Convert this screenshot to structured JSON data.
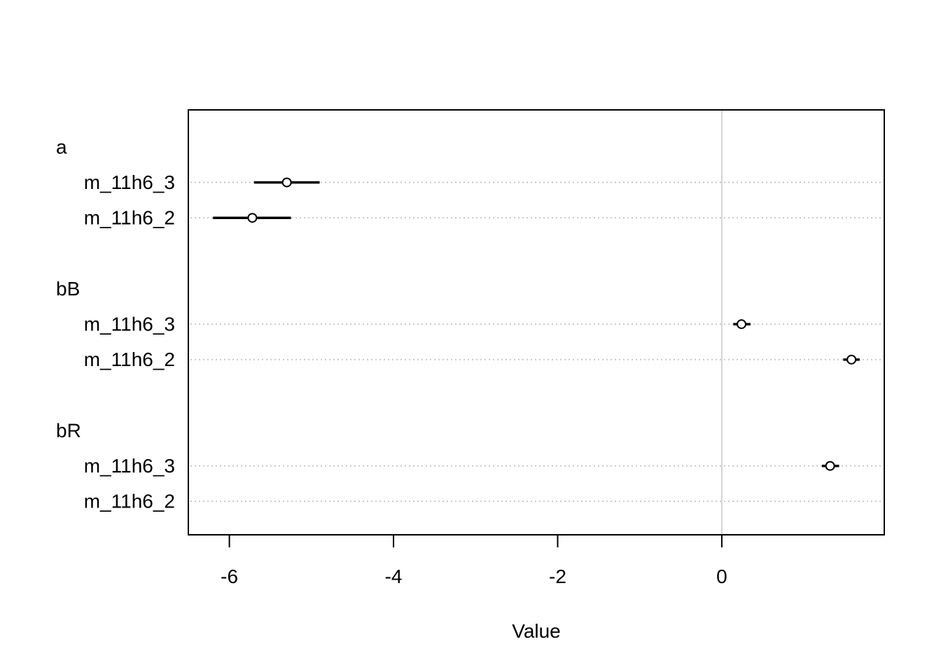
{
  "chart_data": {
    "type": "scatter",
    "subtype": "coefficient-dot-plot",
    "xlabel": "Value",
    "ylabel": "",
    "title": "",
    "xlim": [
      -6.5,
      1.98
    ],
    "xticks": [
      -6,
      -4,
      -2,
      0
    ],
    "xtick_labels": [
      "-6",
      "-4",
      "-2",
      "0"
    ],
    "reference_line_x": 0,
    "grid": "dotted horizontal lines per row",
    "groups": [
      {
        "label": "a",
        "rows": [
          {
            "label": "m_11h6_3",
            "estimate": -5.3,
            "lower": -5.7,
            "upper": -4.9
          },
          {
            "label": "m_11h6_2",
            "estimate": -5.72,
            "lower": -6.2,
            "upper": -5.25
          }
        ]
      },
      {
        "label": "bB",
        "rows": [
          {
            "label": "m_11h6_3",
            "estimate": 0.24,
            "lower": 0.14,
            "upper": 0.35
          },
          {
            "label": "m_11h6_2",
            "estimate": 1.58,
            "lower": 1.48,
            "upper": 1.68
          }
        ]
      },
      {
        "label": "bR",
        "rows": [
          {
            "label": "m_11h6_3",
            "estimate": 1.32,
            "lower": 1.22,
            "upper": 1.43
          },
          {
            "label": "m_11h6_2",
            "estimate": null,
            "lower": null,
            "upper": null
          }
        ]
      }
    ],
    "colors": {
      "marks": "#000000",
      "grid": "#bebebe",
      "zero_line": "#d3d3d3",
      "frame": "#000000"
    }
  }
}
